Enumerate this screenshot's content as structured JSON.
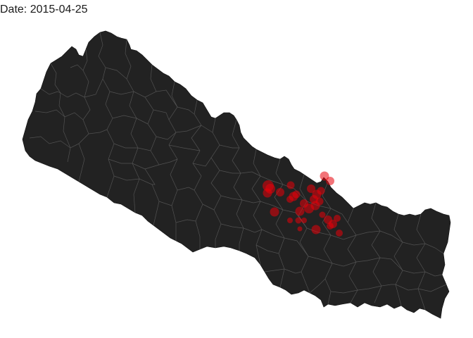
{
  "title": "Date: 2015-04-25",
  "colors": {
    "background": "#ffffff",
    "land": "#222222",
    "district_border": "#5a5a5a",
    "marker": "#e8000a"
  },
  "map": {
    "region": "Nepal",
    "districts_shown": true
  }
}
